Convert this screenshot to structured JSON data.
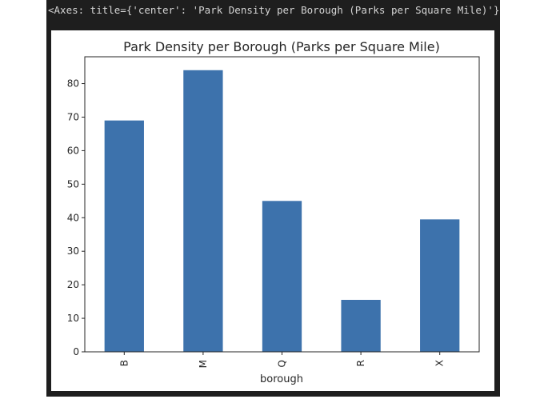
{
  "output_text": "<Axes: title={'center': 'Park Density per Borough (Parks per Square Mile)'}, xlabel='borough'>",
  "colors": {
    "bar": "#3d72ac",
    "background": "#1e1e1e",
    "axis": "#262626"
  },
  "chart_data": {
    "type": "bar",
    "title": "Park Density per Borough (Parks per Square Mile)",
    "xlabel": "borough",
    "ylabel": "",
    "categories": [
      "B",
      "M",
      "Q",
      "R",
      "X"
    ],
    "values": [
      69,
      84,
      45,
      15.5,
      39.5
    ],
    "ylim": [
      0,
      88
    ],
    "yticks": [
      0,
      10,
      20,
      30,
      40,
      50,
      60,
      70,
      80
    ],
    "grid": false,
    "legend": null
  }
}
